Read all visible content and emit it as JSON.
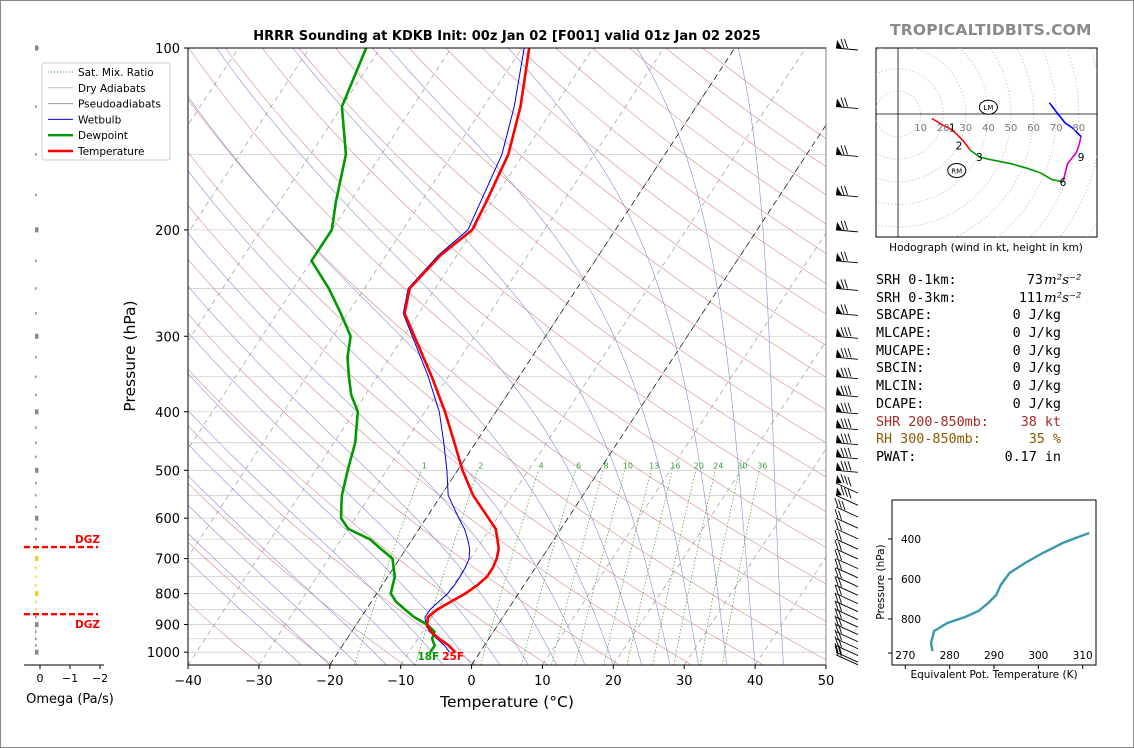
{
  "title": "HRRR Sounding at KDKB Init: 00z Jan 02 [F001] valid 01z Jan 02 2025",
  "brand": "TROPICALTIDBITS.COM",
  "colors": {
    "temperature": "#ff0000",
    "dewpoint": "#009900",
    "wetbulb": "#0000dd",
    "dry_adiabat": "#d98a8a",
    "moist_adiabat": "#8a8ad9",
    "mixing_ratio": "#3a9a3a",
    "theta_e": "#3a97ad",
    "dgz": "#ff0000"
  },
  "legend": [
    "Sat. Mix. Ratio",
    "Dry Adiabats",
    "Pseudoadiabats",
    "Wetbulb",
    "Dewpoint",
    "Temperature"
  ],
  "stats": [
    {
      "label": "SRH 0-1km:",
      "value": "73",
      "unit": "m²s⁻²",
      "color": "#000000"
    },
    {
      "label": "SRH 0-3km:",
      "value": "111",
      "unit": "m²s⁻²",
      "color": "#000000"
    },
    {
      "label": "SBCAPE:",
      "value": "0 J/kg",
      "unit": "",
      "color": "#000000"
    },
    {
      "label": "MLCAPE:",
      "value": "0 J/kg",
      "unit": "",
      "color": "#000000"
    },
    {
      "label": "MUCAPE:",
      "value": "0 J/kg",
      "unit": "",
      "color": "#000000"
    },
    {
      "label": "SBCIN:",
      "value": "0 J/kg",
      "unit": "",
      "color": "#000000"
    },
    {
      "label": "MLCIN:",
      "value": "0 J/kg",
      "unit": "",
      "color": "#000000"
    },
    {
      "label": "DCAPE:",
      "value": "0 J/kg",
      "unit": "",
      "color": "#000000"
    },
    {
      "label": "SHR 200-850mb:",
      "value": "38 kt",
      "unit": "",
      "color": "#a52a2a"
    },
    {
      "label": "RH 300-850mb:",
      "value": "35 %",
      "unit": "",
      "color": "#8b5a00"
    },
    {
      "label": "PWAT:",
      "value": "0.17 in",
      "unit": "",
      "color": "#000000"
    }
  ],
  "surface_labels": {
    "dewpoint": "18F",
    "temperature": "25F"
  },
  "dgz_label": "DGZ",
  "hodograph_caption": "Hodograph (wind in kt, height in km)",
  "chart_data": [
    {
      "type": "line",
      "name": "skew-t",
      "xlabel": "Temperature (°C)",
      "ylabel": "Pressure (hPa)",
      "xlim": [
        -40,
        50
      ],
      "ylim": [
        1050,
        100
      ],
      "yscale": "log",
      "x_ticks": [
        -40,
        -30,
        -20,
        -10,
        0,
        10,
        20,
        30,
        40,
        50
      ],
      "y_ticks": [
        100,
        200,
        300,
        400,
        500,
        600,
        700,
        800,
        900,
        1000
      ],
      "mixing_ratio_labels": [
        1,
        2,
        4,
        6,
        8,
        10,
        13,
        16,
        20,
        24,
        30,
        36
      ],
      "series": [
        {
          "name": "Temperature",
          "p": [
            1000,
            975,
            950,
            925,
            900,
            875,
            850,
            825,
            800,
            775,
            750,
            725,
            700,
            675,
            650,
            625,
            600,
            550,
            500,
            450,
            400,
            350,
            300,
            275,
            250,
            220,
            200,
            180,
            150,
            125,
            100
          ],
          "t": [
            -3.5,
            -5.0,
            -7.0,
            -8.8,
            -10.0,
            -10.6,
            -10.0,
            -8.8,
            -7.5,
            -6.6,
            -6.0,
            -6.0,
            -6.3,
            -6.9,
            -8.0,
            -9.2,
            -11.2,
            -15.5,
            -19.3,
            -23.0,
            -27.2,
            -32.3,
            -38.5,
            -42.0,
            -43.6,
            -42.3,
            -40.2,
            -40.8,
            -42.1,
            -44.8,
            -49.0
          ]
        },
        {
          "name": "Dewpoint",
          "p": [
            1000,
            975,
            950,
            925,
            900,
            875,
            850,
            825,
            800,
            775,
            750,
            725,
            700,
            675,
            650,
            625,
            600,
            575,
            550,
            500,
            450,
            400,
            375,
            350,
            325,
            300,
            275,
            250,
            225,
            200,
            180,
            150,
            125,
            100
          ],
          "t": [
            -7.0,
            -7.0,
            -8.0,
            -8.3,
            -10.0,
            -12.5,
            -14.5,
            -16.5,
            -18.0,
            -18.5,
            -19.0,
            -20.0,
            -21.0,
            -23.5,
            -26.0,
            -30.0,
            -32.0,
            -33.0,
            -34.0,
            -35.5,
            -37.0,
            -39.5,
            -42.0,
            -44.0,
            -46.0,
            -47.5,
            -51.0,
            -55.0,
            -60.0,
            -60.0,
            -62.0,
            -65.0,
            -70.0,
            -72.0
          ]
        },
        {
          "name": "Wetbulb",
          "p": [
            1000,
            975,
            950,
            925,
            900,
            875,
            850,
            825,
            800,
            775,
            750,
            725,
            700,
            675,
            650,
            625,
            600,
            550,
            500,
            450,
            400,
            350,
            300,
            275,
            250,
            220,
            200,
            180,
            150,
            125,
            100
          ],
          "t": [
            -4.3,
            -5.6,
            -7.3,
            -9.0,
            -10.2,
            -11.0,
            -11.0,
            -10.5,
            -10.0,
            -9.8,
            -9.8,
            -9.9,
            -10.2,
            -11.0,
            -12.2,
            -13.6,
            -15.4,
            -19.0,
            -21.5,
            -24.5,
            -28.0,
            -32.8,
            -38.8,
            -42.2,
            -43.8,
            -42.6,
            -40.8,
            -41.6,
            -43.0,
            -45.7,
            -49.7
          ]
        }
      ]
    },
    {
      "type": "line",
      "name": "hodograph",
      "xlabel": "",
      "ylabel": "",
      "tick_labels": [
        10,
        20,
        30,
        40,
        50,
        60,
        70,
        80
      ],
      "height_labels": [
        "1",
        "2",
        "3",
        "6",
        "9"
      ],
      "markers": [
        "LM",
        "RM"
      ],
      "series": [
        {
          "u": [
            15,
            20,
            24,
            26
          ],
          "v": [
            -2,
            -5,
            -7,
            -9
          ],
          "color": "#ff0000"
        },
        {
          "u": [
            26,
            29,
            32
          ],
          "v": [
            -9,
            -12,
            -16
          ],
          "color": "#ff0000"
        },
        {
          "u": [
            32,
            36,
            40,
            50,
            57,
            63,
            68,
            73
          ],
          "v": [
            -16,
            -19,
            -20,
            -22,
            -24,
            -26,
            -29,
            -30
          ],
          "color": "#009900"
        },
        {
          "u": [
            73,
            75,
            79,
            80,
            81
          ],
          "v": [
            -30,
            -22,
            -17,
            -14,
            -10
          ],
          "color": "#cc00cc"
        },
        {
          "u": [
            81,
            77,
            74,
            70,
            67
          ],
          "v": [
            -10,
            -6,
            -4,
            1,
            5
          ],
          "color": "#0000ff"
        }
      ]
    },
    {
      "type": "line",
      "name": "theta-e profile",
      "xlabel": "Equivalent Pot. Temperature (K)",
      "ylabel": "Pressure (hPa)",
      "xlim": [
        267,
        313
      ],
      "ylim": [
        1000,
        200
      ],
      "x_ticks": [
        270,
        280,
        290,
        300,
        310
      ],
      "y_ticks": [
        400,
        600,
        800
      ],
      "series": [
        {
          "x": [
            276.1,
            275.8,
            276.5,
            279.5,
            283.5,
            286.5,
            288.7,
            290.5,
            291.5,
            293.5,
            297.0,
            301.0,
            305.5,
            309.0,
            311.5
          ],
          "p": [
            960,
            920,
            860,
            820,
            790,
            760,
            720,
            680,
            630,
            570,
            520,
            470,
            420,
            390,
            370
          ]
        }
      ]
    },
    {
      "type": "bar",
      "name": "omega",
      "xlabel": "Omega (Pa/s)",
      "xlim": [
        0.5,
        -2.2
      ],
      "x_ticks": [
        0,
        -1,
        -2
      ],
      "dgz_top": 670,
      "dgz_bottom": 865
    }
  ]
}
